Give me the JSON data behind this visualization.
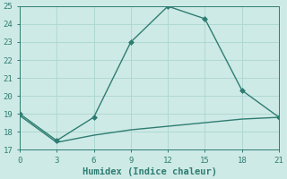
{
  "line1_x": [
    0,
    3,
    6,
    9,
    12,
    15,
    18,
    21
  ],
  "line1_y": [
    19.0,
    17.5,
    18.8,
    23.0,
    25.0,
    24.3,
    20.3,
    18.8
  ],
  "line2_x": [
    0,
    3,
    6,
    9,
    12,
    15,
    18,
    21
  ],
  "line2_y": [
    18.9,
    17.4,
    17.8,
    18.1,
    18.3,
    18.5,
    18.7,
    18.8
  ],
  "line_color": "#2e7d72",
  "bg_color": "#ceeae6",
  "grid_color": "#b0d8d3",
  "xlabel": "Humidex (Indice chaleur)",
  "xlim": [
    0,
    21
  ],
  "ylim": [
    17,
    25
  ],
  "xticks": [
    0,
    3,
    6,
    9,
    12,
    15,
    18,
    21
  ],
  "yticks": [
    17,
    18,
    19,
    20,
    21,
    22,
    23,
    24,
    25
  ],
  "marker": "D",
  "markersize": 3,
  "linewidth": 1.0,
  "tick_fontsize": 6.5
}
